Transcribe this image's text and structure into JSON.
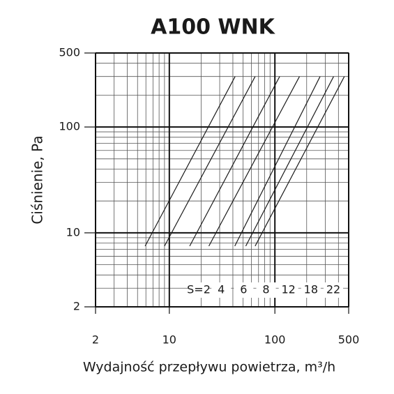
{
  "chart_data": {
    "type": "line",
    "title": "A100 WNK",
    "x_label": "Wydajność przepływu powietrza, m³/h",
    "y_label": "Ciśnienie, Pa",
    "log_x": true,
    "log_y": true,
    "grid": true,
    "color": "#1a1a1a",
    "xlim": [
      2,
      500
    ],
    "ylim": [
      2,
      500
    ],
    "xticks": [
      2,
      10,
      100,
      500
    ],
    "yticks": [
      2,
      10,
      100,
      500
    ],
    "series": [
      {
        "name": "S=2",
        "x": [
          5.9,
          42
        ],
        "values": [
          7.5,
          300
        ]
      },
      {
        "name": "4",
        "x": [
          9,
          65
        ],
        "values": [
          7.5,
          300
        ]
      },
      {
        "name": "6",
        "x": [
          15.6,
          111
        ],
        "values": [
          7.5,
          300
        ]
      },
      {
        "name": "8",
        "x": [
          23.7,
          171
        ],
        "values": [
          7.5,
          300
        ]
      },
      {
        "name": "12",
        "x": [
          41.7,
          268
        ],
        "values": [
          7.5,
          300
        ]
      },
      {
        "name": "18",
        "x": [
          53,
          360
        ],
        "values": [
          7.5,
          300
        ]
      },
      {
        "name": "22",
        "x": [
          65,
          455
        ],
        "values": [
          7.5,
          300
        ]
      }
    ]
  }
}
